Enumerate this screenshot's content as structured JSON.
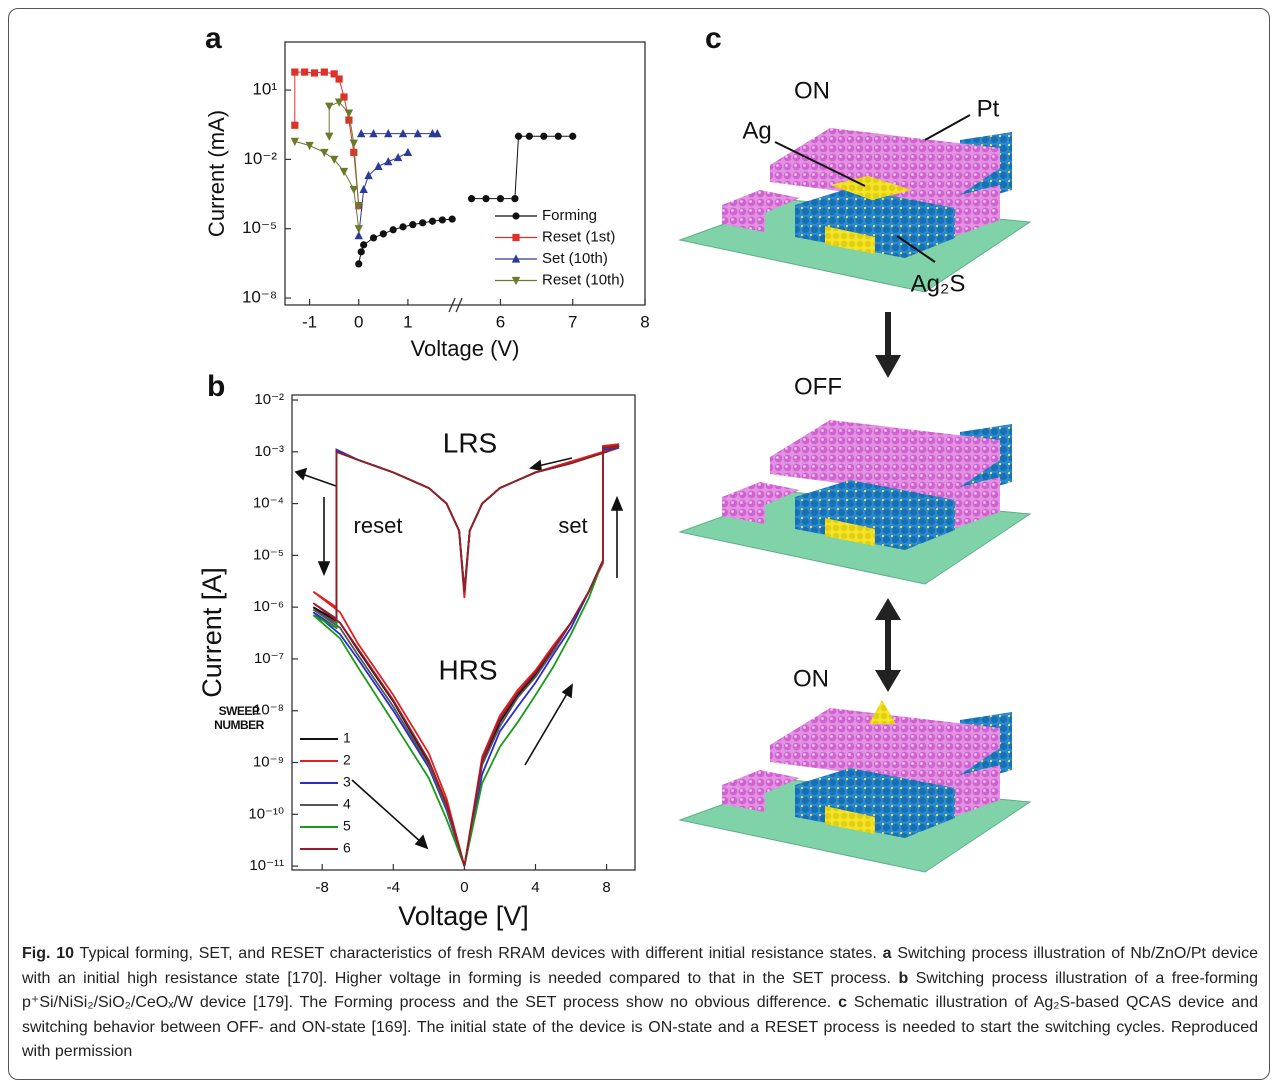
{
  "chart_data": [
    {
      "type": "line",
      "panel_label": "a",
      "y_label": "Current (mA)",
      "x_label": "Voltage (V)",
      "y_scale": "log",
      "xlim": [
        -1.5,
        8
      ],
      "x_break": [
        2,
        5.4
      ],
      "xticks": [
        -1,
        0,
        1,
        6,
        7,
        8
      ],
      "ylim": [
        5e-09,
        1200
      ],
      "yticks": [
        {
          "value": 1e-08,
          "label": "10⁻⁸"
        },
        {
          "value": 1e-05,
          "label": "10⁻⁵"
        },
        {
          "value": 0.01,
          "label": "10⁻²"
        },
        {
          "value": 10,
          "label": "10¹"
        }
      ],
      "legend": "lower right",
      "series": [
        {
          "name": "Forming",
          "color": "#111111",
          "marker": "circle",
          "x": [
            0,
            0.05,
            0.1,
            0.3,
            0.5,
            0.7,
            0.9,
            1.1,
            1.3,
            1.5,
            1.7,
            1.9,
            null,
            5.6,
            5.8,
            6.0,
            6.2,
            6.25,
            6.4,
            6.6,
            6.8,
            7.0
          ],
          "values": [
            3e-07,
            1e-06,
            2e-06,
            4e-06,
            6e-06,
            9e-06,
            1.2e-05,
            1.5e-05,
            1.8e-05,
            2.1e-05,
            2.4e-05,
            2.6e-05,
            null,
            0.0002,
            0.0002,
            0.0002,
            0.0002,
            0.1,
            0.1,
            0.1,
            0.1,
            0.1
          ]
        },
        {
          "name": "Reset (1st)",
          "color": "#e0302a",
          "marker": "square",
          "x": [
            -1.3,
            -1.3,
            -1.1,
            -0.9,
            -0.7,
            -0.5,
            -0.4,
            -0.3,
            -0.2,
            -0.1,
            0
          ],
          "values": [
            0.3,
            60,
            60,
            55,
            60,
            50,
            30,
            5,
            0.5,
            0.02,
            0.0001
          ]
        },
        {
          "name": "Set (10th)",
          "color": "#2b3a9c",
          "marker": "triangle",
          "x": [
            0,
            0.1,
            0.2,
            0.4,
            0.6,
            0.8,
            1.0,
            null,
            0.05,
            0.3,
            0.6,
            0.9,
            1.2,
            1.5,
            1.6
          ],
          "values": [
            5e-06,
            0.0005,
            0.002,
            0.005,
            0.008,
            0.012,
            0.02,
            null,
            0.13,
            0.13,
            0.13,
            0.13,
            0.13,
            0.13,
            0.13
          ]
        },
        {
          "name": "Reset (10th)",
          "color": "#6b7a2a",
          "marker": "triangle-down",
          "x": [
            -1.3,
            -1.0,
            -0.7,
            -0.5,
            -0.3,
            -0.1,
            0,
            null,
            -0.6,
            -0.6,
            -0.4,
            -0.2,
            -0.1,
            0
          ],
          "values": [
            0.06,
            0.04,
            0.02,
            0.01,
            0.003,
            0.0005,
            1e-05,
            null,
            0.1,
            2,
            3,
            1,
            0.05,
            0.0001
          ]
        }
      ]
    },
    {
      "type": "line",
      "panel_label": "b",
      "y_label": "Current [A]",
      "x_label": "Voltage [V]",
      "y_scale": "log",
      "xlim": [
        -9.7,
        9.6
      ],
      "xticks": [
        -8,
        -4,
        0,
        4,
        8
      ],
      "ylim": [
        8.4e-12,
        0.0125
      ],
      "yticks": [
        {
          "value": 0.01,
          "label": "10⁻²"
        },
        {
          "value": 0.001,
          "label": "10⁻³"
        },
        {
          "value": 0.0001,
          "label": "10⁻⁴"
        },
        {
          "value": 1e-05,
          "label": "10⁻⁵"
        },
        {
          "value": 1e-06,
          "label": "10⁻⁶"
        },
        {
          "value": 1e-07,
          "label": "10⁻⁷"
        },
        {
          "value": 1e-08,
          "label": "10⁻⁸"
        },
        {
          "value": 1e-09,
          "label": "10⁻⁹"
        },
        {
          "value": 1e-10,
          "label": "10⁻¹⁰"
        },
        {
          "value": 1e-11,
          "label": "10⁻¹¹"
        }
      ],
      "legend": "lower left",
      "legend_title": [
        "SWEEP",
        "NUMBER"
      ],
      "annotations": [
        "LRS",
        "HRS",
        "reset",
        "set"
      ],
      "x": [
        0,
        1,
        2,
        3,
        4,
        5,
        6,
        7,
        7.8,
        7.8,
        8.7,
        8,
        6,
        4,
        2,
        1,
        0.3,
        0,
        -0.3,
        -1,
        -2,
        -4,
        -6,
        -7.2,
        -7.2,
        -8.5,
        -7,
        -6,
        -4,
        -2,
        -1,
        0
      ],
      "series": [
        {
          "name": "1",
          "color": "#111111",
          "values": [
            1e-11,
            1e-09,
            6e-09,
            2e-08,
            5e-08,
            1.5e-07,
            5e-07,
            2e-06,
            8e-06,
            0.0012,
            0.0013,
            0.001,
            0.0006,
            0.0004,
            0.0002,
            0.0001,
            3e-05,
            2e-06,
            3e-05,
            0.0001,
            0.0002,
            0.0004,
            0.0007,
            0.001,
            5e-07,
            1e-06,
            5e-07,
            1.5e-07,
            1.5e-08,
            1e-09,
            1.5e-10,
            1e-11
          ]
        },
        {
          "name": "2",
          "color": "#e02020",
          "values": [
            1e-11,
            1.3e-09,
            8e-09,
            2.5e-08,
            6e-08,
            1.8e-07,
            5e-07,
            2e-06,
            7e-06,
            0.0013,
            0.0014,
            0.00105,
            0.00065,
            0.0004,
            0.0002,
            0.0001,
            3e-05,
            1.5e-06,
            3e-05,
            0.0001,
            0.0002,
            0.0004,
            0.0007,
            0.0011,
            1e-06,
            2e-06,
            8e-07,
            2e-07,
            2e-08,
            1.5e-09,
            2e-10,
            1e-11
          ]
        },
        {
          "name": "3",
          "color": "#2a2ad0",
          "values": [
            1e-11,
            6e-10,
            4e-09,
            1.2e-08,
            3.5e-08,
            1.2e-07,
            4e-07,
            2e-06,
            8e-06,
            0.0011,
            0.0012,
            0.001,
            0.0006,
            0.0004,
            0.0002,
            0.0001,
            3e-05,
            2e-06,
            3e-05,
            0.0001,
            0.0002,
            0.0004,
            0.0007,
            0.0011,
            4e-07,
            8e-07,
            3e-07,
            1e-07,
            1e-08,
            8e-10,
            1.2e-10,
            1e-11
          ]
        },
        {
          "name": "4",
          "color": "#555555",
          "values": [
            1e-11,
            9e-10,
            5e-09,
            1.8e-08,
            4.5e-08,
            1.4e-07,
            5e-07,
            2e-06,
            8e-06,
            0.0012,
            0.0013,
            0.001,
            0.0006,
            0.0004,
            0.0002,
            0.0001,
            3e-05,
            2e-06,
            3e-05,
            0.0001,
            0.0002,
            0.0004,
            0.0007,
            0.001,
            5e-07,
            9e-07,
            4e-07,
            1.2e-07,
            1.2e-08,
            9e-10,
            1.3e-10,
            1e-11
          ]
        },
        {
          "name": "5",
          "color": "#1a9a1a",
          "values": [
            1e-11,
            4e-10,
            2e-09,
            6e-09,
            2e-08,
            7e-08,
            3e-07,
            1.5e-06,
            8e-06,
            0.0012,
            0.0013,
            0.001,
            0.0006,
            0.0004,
            0.0002,
            0.0001,
            3e-05,
            2e-06,
            3e-05,
            0.0001,
            0.0002,
            0.0004,
            0.0007,
            0.001,
            4e-07,
            7e-07,
            2.5e-07,
            7e-08,
            6e-09,
            5e-10,
            8e-11,
            1e-11
          ]
        },
        {
          "name": "6",
          "color": "#9a1a2a",
          "values": [
            1e-11,
            1.1e-09,
            7e-09,
            2.2e-08,
            5.5e-08,
            1.6e-07,
            5e-07,
            2e-06,
            8e-06,
            0.0012,
            0.0013,
            0.001,
            0.0006,
            0.0004,
            0.0002,
            0.0001,
            3e-05,
            2e-06,
            3e-05,
            0.0001,
            0.0002,
            0.0004,
            0.0007,
            0.001,
            6e-07,
            1.2e-06,
            5e-07,
            1.6e-07,
            1.6e-08,
            1.1e-09,
            1.6e-10,
            1e-11
          ]
        }
      ]
    }
  ],
  "diagram": {
    "panel_label": "c",
    "states": [
      "ON",
      "OFF",
      "ON"
    ],
    "parts": [
      "Pt",
      "Ag",
      "Ag₂S"
    ]
  },
  "caption": {
    "figure_label": "Fig. 10",
    "intro": "Typical forming, SET, and RESET characteristics of fresh RRAM devices with different initial resistance states.",
    "panels": [
      {
        "letter": "a",
        "text": "Switching process illustration of Nb/ZnO/Pt device with an initial high resistance state [170]. Higher voltage in forming is needed compared to that in the SET process."
      },
      {
        "letter": "b",
        "text": "Switching process illustration of a free-forming p⁺Si/NiSi₂/SiO₂/CeOₓ/W device [179]. The Forming process and the SET process show no obvious difference."
      },
      {
        "letter": "c",
        "text": "Schematic illustration of Ag₂S-based QCAS device and switching behavior between OFF- and ON-state [169]. The initial state of the device is ON-state and a RESET process is needed to start the switching cycles. Reproduced with permission"
      }
    ]
  }
}
